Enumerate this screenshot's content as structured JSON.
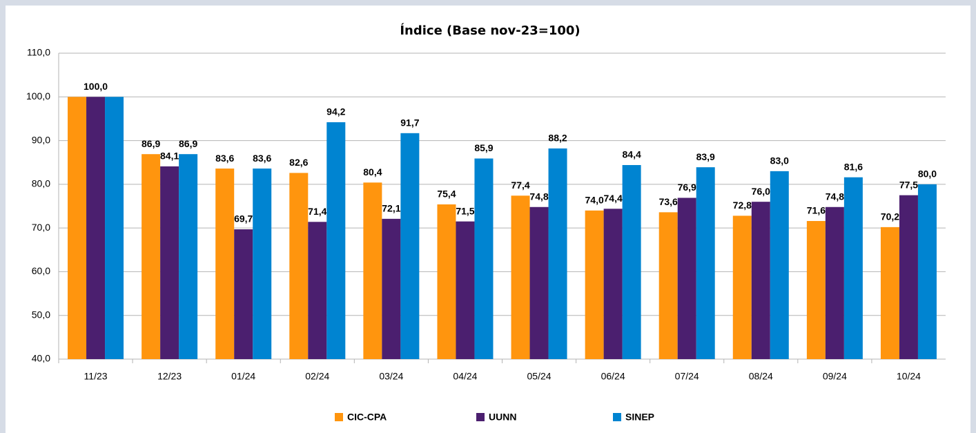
{
  "chart_data": {
    "type": "bar",
    "title": "Índice (Base nov-23=100)",
    "categories": [
      "11/23",
      "12/23",
      "01/24",
      "02/24",
      "03/24",
      "04/24",
      "05/24",
      "06/24",
      "07/24",
      "08/24",
      "09/24",
      "10/24"
    ],
    "series": [
      {
        "name": "CIC-CPA",
        "color": "#ff950e",
        "values": [
          100,
          86.9,
          83.6,
          82.6,
          80.4,
          75.4,
          77.4,
          74.0,
          73.6,
          72.8,
          71.6,
          70.2
        ],
        "value_labels": [
          null,
          "86,9",
          "83,6",
          "82,6",
          "80,4",
          "75,4",
          "77,4",
          "74,0",
          "73,6",
          "72,8",
          "71,6",
          "70,2"
        ]
      },
      {
        "name": "UUNN",
        "color": "#4b1f6f",
        "values": [
          100,
          84.1,
          69.7,
          71.4,
          72.1,
          71.5,
          74.8,
          74.4,
          76.9,
          76.0,
          74.8,
          77.5
        ],
        "value_labels": [
          "100,0",
          "84,1",
          "69,7",
          "71,4",
          "72,1",
          "71,5",
          "74,8",
          "74,4",
          "76,9",
          "76,0",
          "74,8",
          "77,5"
        ]
      },
      {
        "name": "SINEP",
        "color": "#0084d1",
        "values": [
          100,
          86.9,
          83.6,
          94.2,
          91.7,
          85.9,
          88.2,
          84.4,
          83.9,
          83.0,
          81.6,
          80.0
        ],
        "value_labels": [
          null,
          "86,9",
          "83,6",
          "94,2",
          "91,7",
          "85,9",
          "88,2",
          "84,4",
          "83,9",
          "83,0",
          "81,6",
          "80,0"
        ]
      }
    ],
    "ylim": [
      40,
      110
    ],
    "yticks": [
      {
        "value": 40,
        "label": "40,0"
      },
      {
        "value": 50,
        "label": "50,0"
      },
      {
        "value": 60,
        "label": "60,0"
      },
      {
        "value": 70,
        "label": "70,0"
      },
      {
        "value": 80,
        "label": "80,0"
      },
      {
        "value": 90,
        "label": "90,0"
      },
      {
        "value": 100,
        "label": "100,0"
      },
      {
        "value": 110,
        "label": "110,0"
      }
    ],
    "grid": true,
    "legend": "bottom"
  }
}
